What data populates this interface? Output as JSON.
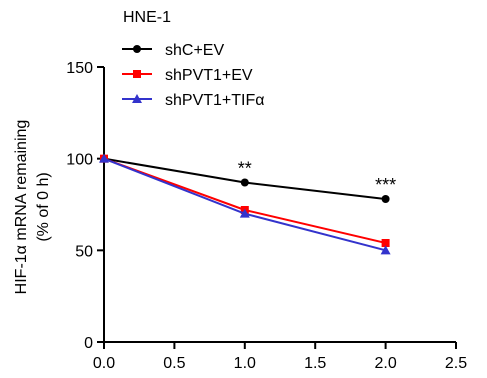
{
  "chart_data": {
    "type": "line",
    "title": "HNE-1",
    "xlabel": "",
    "ylabel_lines": [
      "HIF-1α mRNA remaining",
      "(% of 0 h)"
    ],
    "xlim": [
      0,
      2.5
    ],
    "ylim": [
      0,
      150
    ],
    "x_ticks": [
      0.0,
      0.5,
      1.0,
      1.5,
      2.0,
      2.5
    ],
    "x_tick_labels": [
      "0.0",
      "0.5",
      "1.0",
      "1.5",
      "2.0",
      "2.5"
    ],
    "y_ticks": [
      0,
      50,
      100,
      150
    ],
    "y_tick_labels": [
      "0",
      "50",
      "100",
      "150"
    ],
    "grid": false,
    "legend_position": "top-left",
    "series": [
      {
        "name": "shC+EV",
        "color": "#000000",
        "marker": "circle",
        "x": [
          0,
          1,
          2
        ],
        "y": [
          100,
          87,
          78
        ]
      },
      {
        "name": "shPVT1+EV",
        "color": "#ff0000",
        "marker": "square",
        "x": [
          0,
          1,
          2
        ],
        "y": [
          100,
          72,
          54
        ]
      },
      {
        "name": "shPVT1+TIFα",
        "color": "#3333cc",
        "marker": "triangle",
        "x": [
          0,
          1,
          2
        ],
        "y": [
          100,
          70,
          50
        ]
      }
    ],
    "annotations": [
      {
        "text": "**",
        "x": 1,
        "y": 87
      },
      {
        "text": "***",
        "x": 2,
        "y": 78
      }
    ]
  }
}
